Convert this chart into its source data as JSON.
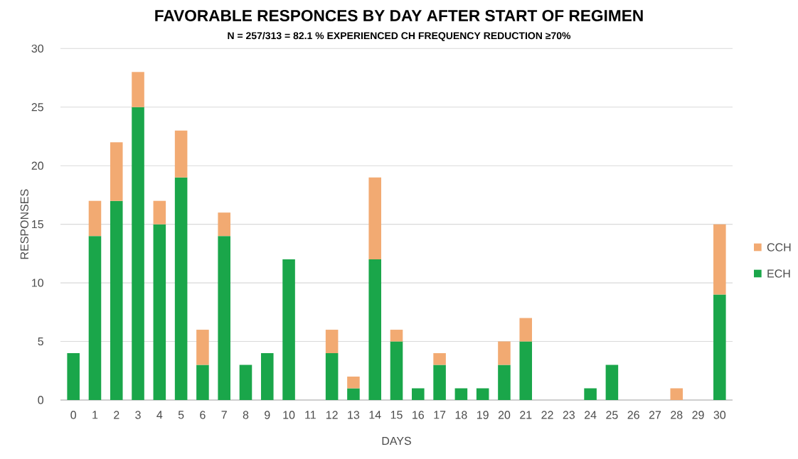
{
  "chart_data": {
    "type": "bar",
    "stacked": true,
    "title": "FAVORABLE RESPONCES BY DAY AFTER START OF REGIMEN",
    "subtitle": "N = 257/313 = 82.1 % EXPERIENCED CH FREQUENCY REDUCTION ≥70%",
    "xlabel": "DAYS",
    "ylabel": "RESPONSES",
    "categories": [
      "0",
      "1",
      "2",
      "3",
      "4",
      "5",
      "6",
      "7",
      "8",
      "9",
      "10",
      "11",
      "12",
      "13",
      "14",
      "15",
      "16",
      "17",
      "18",
      "19",
      "20",
      "21",
      "22",
      "23",
      "24",
      "25",
      "26",
      "27",
      "28",
      "29",
      "30"
    ],
    "series": [
      {
        "name": "ECH",
        "color": "#1aa64a",
        "values": [
          4,
          14,
          17,
          25,
          15,
          19,
          3,
          14,
          3,
          4,
          12,
          null,
          4,
          1,
          12,
          5,
          1,
          3,
          1,
          1,
          3,
          5,
          null,
          null,
          1,
          3,
          null,
          null,
          null,
          null,
          9
        ]
      },
      {
        "name": "CCH",
        "color": "#f2aa72",
        "values": [
          null,
          3,
          5,
          3,
          2,
          4,
          3,
          2,
          null,
          null,
          null,
          null,
          2,
          1,
          7,
          1,
          null,
          1,
          null,
          null,
          2,
          2,
          null,
          null,
          null,
          null,
          null,
          null,
          1,
          null,
          6
        ]
      }
    ],
    "ylim": [
      0,
      30
    ],
    "yticks": [
      0,
      5,
      10,
      15,
      20,
      25,
      30
    ],
    "grid": "y",
    "legend": "right"
  }
}
